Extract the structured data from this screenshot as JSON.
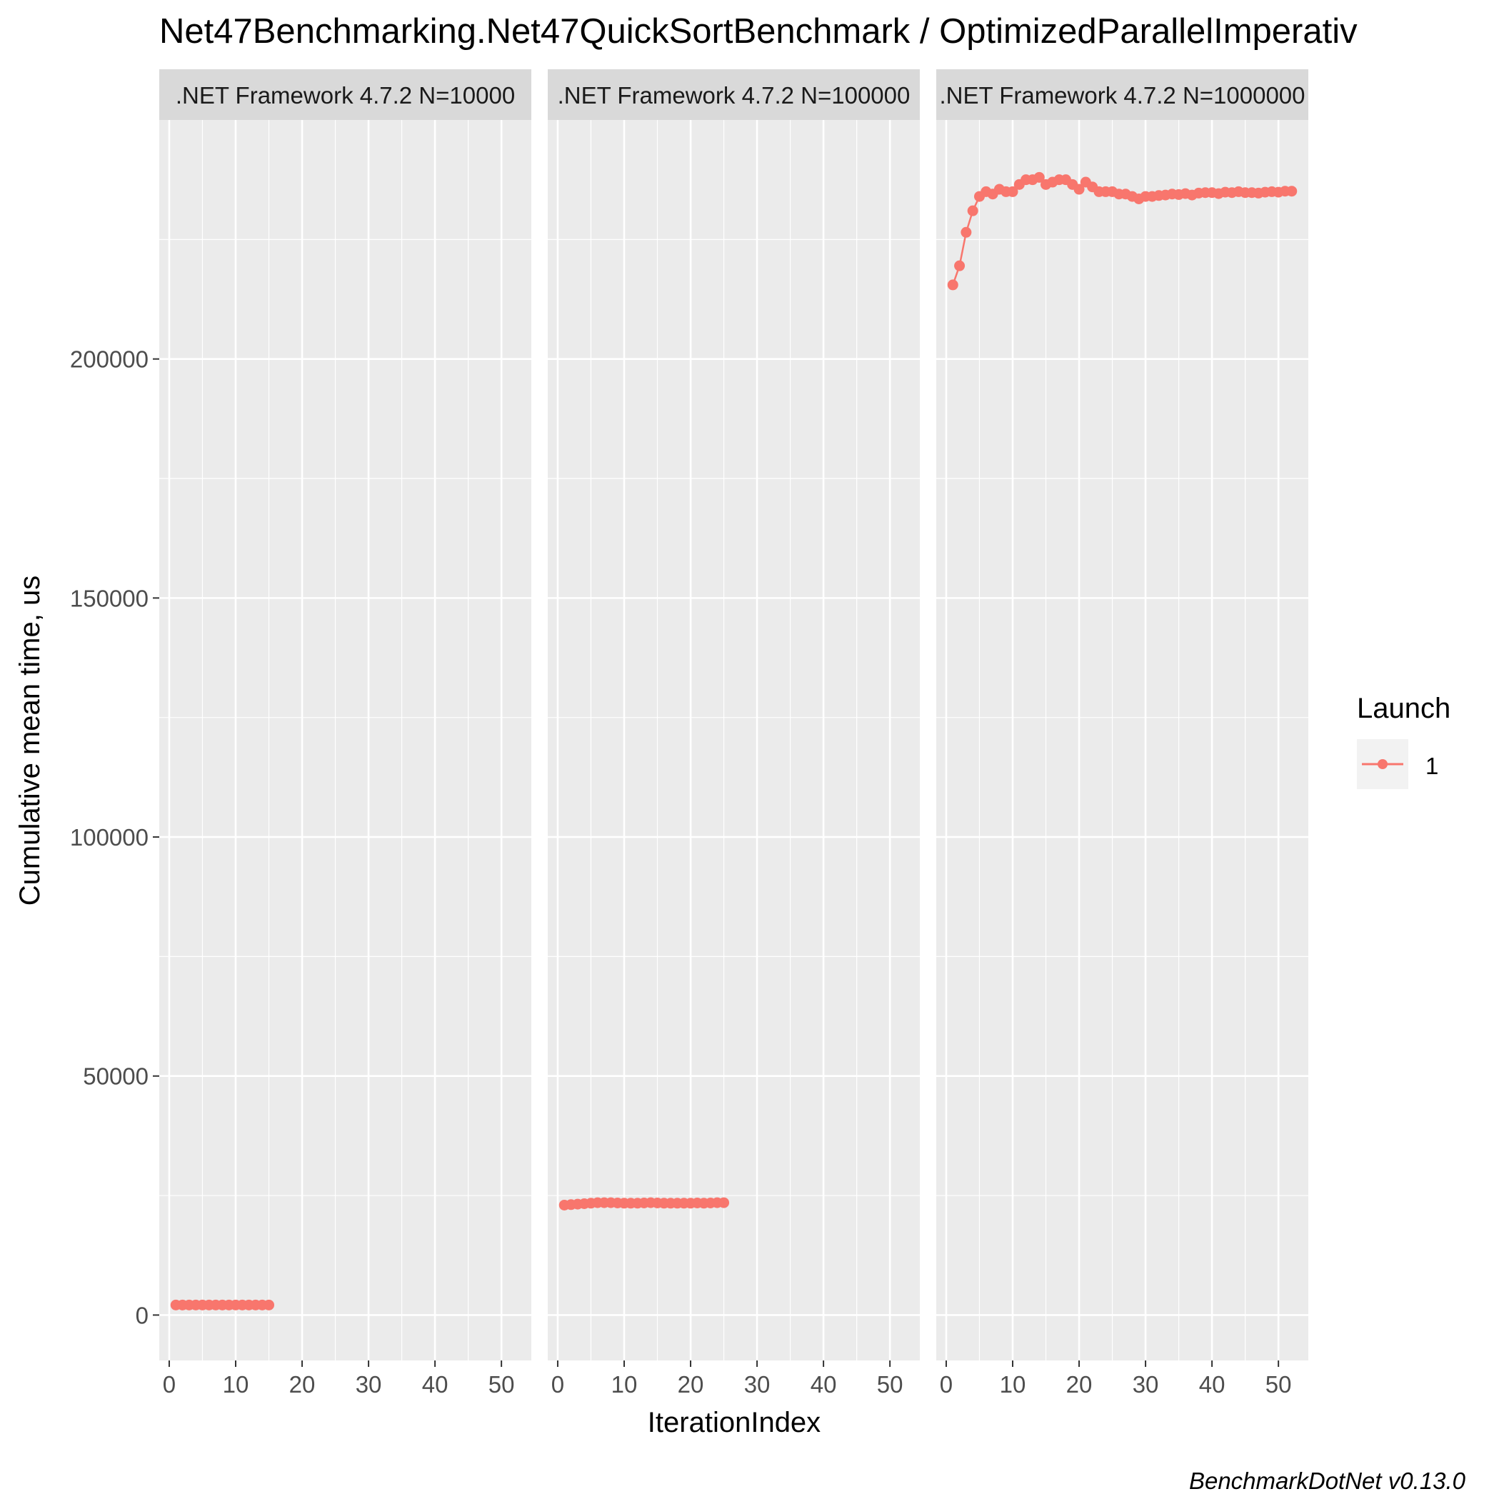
{
  "chart_data": {
    "type": "line",
    "title": "Net47Benchmarking.Net47QuickSortBenchmark / OptimizedParallelImperativ",
    "xlabel": "IterationIndex",
    "ylabel": "Cumulative mean time, us",
    "caption": "BenchmarkDotNet v0.13.0",
    "xlim": [
      -1.5,
      54.5
    ],
    "ylim": [
      -9500,
      250000
    ],
    "x_ticks": [
      0,
      10,
      20,
      30,
      40,
      50
    ],
    "x_tick_labels": [
      "0",
      "10",
      "20",
      "30",
      "40",
      "50"
    ],
    "y_ticks": [
      0,
      50000,
      100000,
      150000,
      200000
    ],
    "y_tick_labels": [
      "0",
      "50000",
      "100000",
      "150000",
      "200000"
    ],
    "grid": true,
    "legend": {
      "title": "Launch",
      "position": "right",
      "entries": [
        "1"
      ]
    },
    "colors": {
      "series": "#F8766D",
      "panel_bg": "#EBEBEB",
      "strip_bg": "#D9D9D9",
      "grid": "#FFFFFF"
    },
    "panels": [
      {
        "strip": ".NET Framework 4.7.2 N=10000",
        "series": [
          {
            "name": "1",
            "x": [
              1,
              2,
              3,
              4,
              5,
              6,
              7,
              8,
              9,
              10,
              11,
              12,
              13,
              14,
              15
            ],
            "y": [
              2100,
              2100,
              2100,
              2100,
              2100,
              2100,
              2100,
              2100,
              2100,
              2100,
              2100,
              2100,
              2100,
              2100,
              2100
            ]
          }
        ]
      },
      {
        "strip": ".NET Framework 4.7.2 N=100000",
        "series": [
          {
            "name": "1",
            "x": [
              1,
              2,
              3,
              4,
              5,
              6,
              7,
              8,
              9,
              10,
              11,
              12,
              13,
              14,
              15,
              16,
              17,
              18,
              19,
              20,
              21,
              22,
              23,
              24,
              25
            ],
            "y": [
              23000,
              23100,
              23200,
              23300,
              23400,
              23500,
              23500,
              23500,
              23450,
              23400,
              23400,
              23400,
              23450,
              23500,
              23450,
              23400,
              23400,
              23400,
              23400,
              23400,
              23450,
              23400,
              23450,
              23500,
              23500
            ]
          }
        ]
      },
      {
        "strip": ".NET Framework 4.7.2 N=1000000",
        "series": [
          {
            "name": "1",
            "x": [
              1,
              2,
              3,
              4,
              5,
              6,
              7,
              8,
              9,
              10,
              11,
              12,
              13,
              14,
              15,
              16,
              17,
              18,
              19,
              20,
              21,
              22,
              23,
              24,
              25,
              26,
              27,
              28,
              29,
              30,
              31,
              32,
              33,
              34,
              35,
              36,
              37,
              38,
              39,
              40,
              41,
              42,
              43,
              44,
              45,
              46,
              47,
              48,
              49,
              50,
              51,
              52
            ],
            "y": [
              215500,
              219500,
              226500,
              231000,
              234000,
              235000,
              234500,
              235500,
              235000,
              235000,
              236500,
              237500,
              237500,
              238000,
              236500,
              237000,
              237500,
              237500,
              236500,
              235500,
              237000,
              236000,
              235000,
              235000,
              235000,
              234500,
              234500,
              234000,
              233500,
              234000,
              234000,
              234200,
              234300,
              234500,
              234400,
              234600,
              234300,
              234700,
              234800,
              234800,
              234600,
              234900,
              234800,
              235000,
              234800,
              234800,
              234700,
              234900,
              235000,
              234900,
              235100,
              235100
            ]
          }
        ]
      }
    ]
  }
}
